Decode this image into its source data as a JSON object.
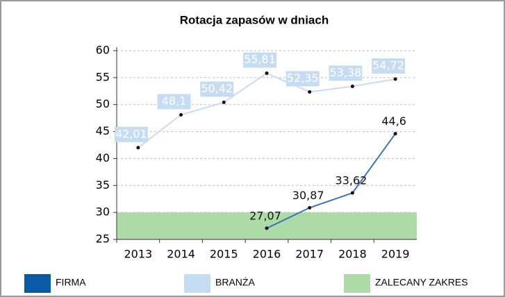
{
  "chart_data": {
    "type": "line",
    "title": "Rotacja zapasów w dniach",
    "categories": [
      "2013",
      "2014",
      "2015",
      "2016",
      "2017",
      "2018",
      "2019"
    ],
    "series": [
      {
        "name": "FIRMA",
        "color": "#3a74b8",
        "legend_color": "#0b5aa6",
        "values": [
          null,
          null,
          null,
          27.07,
          30.87,
          33.62,
          44.6
        ],
        "value_labels": [
          null,
          null,
          null,
          "27,07",
          "30,87",
          "33,62",
          "44,6"
        ]
      },
      {
        "name": "BRANŻA",
        "color": "#c6dcf2",
        "legend_color": "#c6dcf2",
        "values": [
          42.01,
          48.1,
          50.42,
          55.81,
          52.35,
          53.38,
          54.72
        ],
        "value_labels": [
          "42,01",
          "48,1",
          "50,42",
          "55,81",
          "52,35",
          "53,38",
          "54,72"
        ]
      }
    ],
    "range": {
      "name": "ZALECANY ZAKRES",
      "color": "#acdba6",
      "values": [
        25,
        30
      ]
    },
    "ylim": [
      25,
      60
    ],
    "yticks": [
      25,
      30,
      35,
      40,
      45,
      50,
      55,
      60
    ],
    "grid": true
  }
}
